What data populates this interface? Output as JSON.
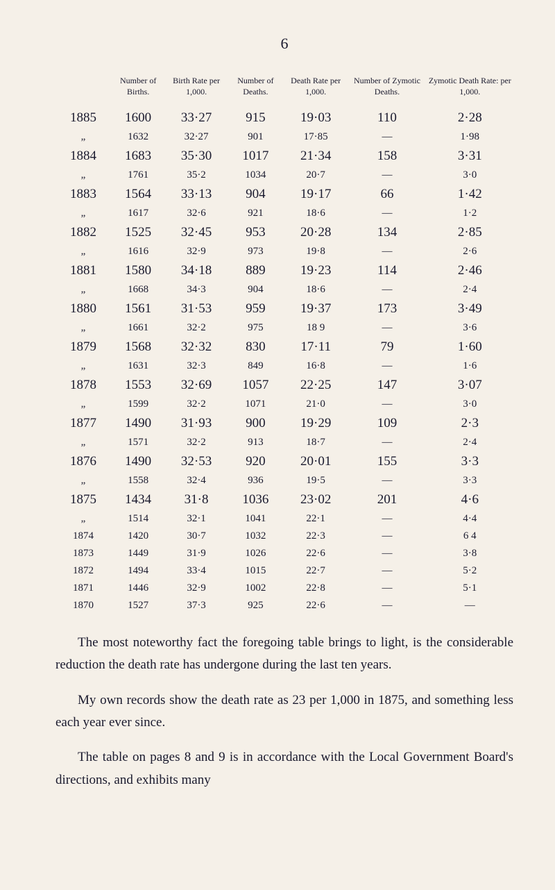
{
  "pageNumber": "6",
  "headers": {
    "col0": "",
    "col1": "Number of Births.",
    "col2": "Birth Rate per 1,000.",
    "col3": "Number of Deaths.",
    "col4": "Death Rate per 1,000.",
    "col5": "Number of Zymotic Deaths.",
    "col6": "Zymotic Death Rate: per 1,000."
  },
  "rows": [
    {
      "class": "bold",
      "c0": "1885",
      "c1": "1600",
      "c2": "33·27",
      "c3": "915",
      "c4": "19·03",
      "c5": "110",
      "c6": "2·28"
    },
    {
      "class": "small",
      "c0": "„",
      "c1": "1632",
      "c2": "32·27",
      "c3": "901",
      "c4": "17·85",
      "c5": "—",
      "c6": "1·98"
    },
    {
      "class": "bold",
      "c0": "1884",
      "c1": "1683",
      "c2": "35·30",
      "c3": "1017",
      "c4": "21·34",
      "c5": "158",
      "c6": "3·31"
    },
    {
      "class": "small",
      "c0": "„",
      "c1": "1761",
      "c2": "35·2",
      "c3": "1034",
      "c4": "20·7",
      "c5": "—",
      "c6": "3·0"
    },
    {
      "class": "bold",
      "c0": "1883",
      "c1": "1564",
      "c2": "33·13",
      "c3": "904",
      "c4": "19·17",
      "c5": "66",
      "c6": "1·42"
    },
    {
      "class": "small",
      "c0": "„",
      "c1": "1617",
      "c2": "32·6",
      "c3": "921",
      "c4": "18·6",
      "c5": "—",
      "c6": "1·2"
    },
    {
      "class": "bold",
      "c0": "1882",
      "c1": "1525",
      "c2": "32·45",
      "c3": "953",
      "c4": "20·28",
      "c5": "134",
      "c6": "2·85"
    },
    {
      "class": "small",
      "c0": "„",
      "c1": "1616",
      "c2": "32·9",
      "c3": "973",
      "c4": "19·8",
      "c5": "—",
      "c6": "2·6"
    },
    {
      "class": "bold",
      "c0": "1881",
      "c1": "1580",
      "c2": "34·18",
      "c3": "889",
      "c4": "19·23",
      "c5": "114",
      "c6": "2·46"
    },
    {
      "class": "small",
      "c0": "„",
      "c1": "1668",
      "c2": "34·3",
      "c3": "904",
      "c4": "18·6",
      "c5": "—",
      "c6": "2·4"
    },
    {
      "class": "bold",
      "c0": "1880",
      "c1": "1561",
      "c2": "31·53",
      "c3": "959",
      "c4": "19·37",
      "c5": "173",
      "c6": "3·49"
    },
    {
      "class": "small",
      "c0": "„",
      "c1": "1661",
      "c2": "32·2",
      "c3": "975",
      "c4": "18 9",
      "c5": "—",
      "c6": "3·6"
    },
    {
      "class": "bold",
      "c0": "1879",
      "c1": "1568",
      "c2": "32·32",
      "c3": "830",
      "c4": "17·11",
      "c5": "79",
      "c6": "1·60"
    },
    {
      "class": "small",
      "c0": "„",
      "c1": "1631",
      "c2": "32·3",
      "c3": "849",
      "c4": "16·8",
      "c5": "—",
      "c6": "1·6"
    },
    {
      "class": "bold",
      "c0": "1878",
      "c1": "1553",
      "c2": "32·69",
      "c3": "1057",
      "c4": "22·25",
      "c5": "147",
      "c6": "3·07"
    },
    {
      "class": "small",
      "c0": "„",
      "c1": "1599",
      "c2": "32·2",
      "c3": "1071",
      "c4": "21·0",
      "c5": "—",
      "c6": "3·0"
    },
    {
      "class": "bold",
      "c0": "1877",
      "c1": "1490",
      "c2": "31·93",
      "c3": "900",
      "c4": "19·29",
      "c5": "109",
      "c6": "2·3"
    },
    {
      "class": "small",
      "c0": "„",
      "c1": "1571",
      "c2": "32·2",
      "c3": "913",
      "c4": "18·7",
      "c5": "—",
      "c6": "2·4"
    },
    {
      "class": "bold",
      "c0": "1876",
      "c1": "1490",
      "c2": "32·53",
      "c3": "920",
      "c4": "20·01",
      "c5": "155",
      "c6": "3·3"
    },
    {
      "class": "small",
      "c0": "„",
      "c1": "1558",
      "c2": "32·4",
      "c3": "936",
      "c4": "19·5",
      "c5": "—",
      "c6": "3·3"
    },
    {
      "class": "bold",
      "c0": "1875",
      "c1": "1434",
      "c2": "31·8",
      "c3": "1036",
      "c4": "23·02",
      "c5": "201",
      "c6": "4·6"
    },
    {
      "class": "small",
      "c0": "„",
      "c1": "1514",
      "c2": "32·1",
      "c3": "1041",
      "c4": "22·1",
      "c5": "—",
      "c6": "4·4"
    },
    {
      "class": "small",
      "c0": "1874",
      "c1": "1420",
      "c2": "30·7",
      "c3": "1032",
      "c4": "22·3",
      "c5": "—",
      "c6": "6 4"
    },
    {
      "class": "small",
      "c0": "1873",
      "c1": "1449",
      "c2": "31·9",
      "c3": "1026",
      "c4": "22·6",
      "c5": "—",
      "c6": "3·8"
    },
    {
      "class": "small",
      "c0": "1872",
      "c1": "1494",
      "c2": "33·4",
      "c3": "1015",
      "c4": "22·7",
      "c5": "—",
      "c6": "5·2"
    },
    {
      "class": "small",
      "c0": "1871",
      "c1": "1446",
      "c2": "32·9",
      "c3": "1002",
      "c4": "22·8",
      "c5": "—",
      "c6": "5·1"
    },
    {
      "class": "small",
      "c0": "1870",
      "c1": "1527",
      "c2": "37·3",
      "c3": "925",
      "c4": "22·6",
      "c5": "—",
      "c6": "—"
    }
  ],
  "paragraphs": [
    "The most noteworthy fact the foregoing table brings to light, is the considerable reduction the death rate has undergone during the last ten years.",
    "My own records show the death rate as 23 per 1,000 in 1875, and something less each year ever since.",
    "The table on pages 8 and 9 is in accordance with the Local Government Board's directions, and exhibits many"
  ]
}
